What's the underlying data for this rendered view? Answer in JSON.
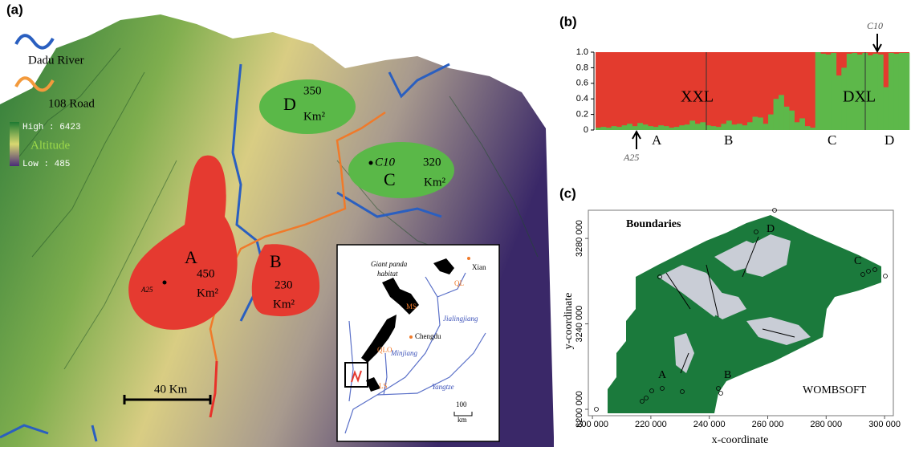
{
  "panel_a": {
    "label": "(a)",
    "legend": {
      "river": "Dadu River",
      "road": "108 Road",
      "high": "High : 6423",
      "altitude": "Altitude",
      "low": "Low : 485"
    },
    "regions": [
      {
        "name": "D",
        "area": "350",
        "unit": "Km²"
      },
      {
        "name": "C",
        "area": "320",
        "unit": "Km²",
        "sample": "C10"
      },
      {
        "name": "A",
        "area": "450",
        "unit": "Km²",
        "sample": "A25"
      },
      {
        "name": "B",
        "area": "230",
        "unit": "Km²"
      }
    ],
    "scale_bar": "40 Km",
    "inset": {
      "habitat": [
        "Giant panda",
        "habitat"
      ],
      "places": [
        "Xian",
        "QL",
        "MS",
        "Chengdu",
        "QLO",
        "LS"
      ],
      "rivers": [
        "Jialingjiang",
        "Minjiang",
        "Yangtze"
      ],
      "scale": [
        "100",
        "km"
      ]
    }
  },
  "chart_data": {
    "type": "bar",
    "label": "(b)",
    "series": [
      {
        "name": "DXL",
        "color": "#5db84a",
        "values": [
          0.03,
          0.04,
          0.03,
          0.05,
          0.04,
          0.06,
          0.08,
          0.05,
          0.09,
          0.07,
          0.05,
          0.04,
          0.06,
          0.05,
          0.03,
          0.04,
          0.06,
          0.07,
          0.12,
          0.08,
          0.1,
          0.06,
          0.05,
          0.04,
          0.08,
          0.12,
          0.07,
          0.08,
          0.06,
          0.1,
          0.17,
          0.16,
          0.08,
          0.2,
          0.4,
          0.45,
          0.3,
          0.25,
          0.1,
          0.15,
          0.05,
          0.03,
          1.0,
          0.98,
          0.97,
          0.99,
          0.7,
          0.8,
          0.98,
          0.99,
          0.97,
          0.99,
          0.96,
          0.98,
          0.97,
          0.55,
          0.99,
          0.98,
          0.99,
          0.99
        ]
      }
    ],
    "other": {
      "name": "XXL",
      "color": "#e33b2e"
    },
    "groups": [
      "A",
      "B",
      "C",
      "D"
    ],
    "annotations": [
      "C10",
      "A25"
    ],
    "ylim": [
      0,
      1
    ],
    "yticks": [
      0,
      0.2,
      0.4,
      0.6,
      0.8,
      {
        "value": 1,
        "label": "1.0"
      }
    ]
  },
  "panel_c": {
    "label": "(c)",
    "title": "Boundaries",
    "software": "WOMBSOFT",
    "xlabel": "x-coordinate",
    "ylabel": "y-coordinate",
    "xlim": [
      198600,
      303000
    ],
    "ylim": [
      3197000,
      3293200
    ],
    "xticks": [
      {
        "value": 200000,
        "label": "200 000"
      },
      {
        "value": 220000,
        "label": "220 000"
      },
      {
        "value": 240000,
        "label": "240 000"
      },
      {
        "value": 260000,
        "label": "260 000"
      },
      {
        "value": 280000,
        "label": "280 000"
      },
      {
        "value": 300000,
        "label": "300 000"
      }
    ],
    "yticks": [
      {
        "value": 3200000,
        "label": "3200 000"
      },
      {
        "value": 3240000,
        "label": "3240 000"
      },
      {
        "value": 3280000,
        "label": "3280 000"
      }
    ],
    "populations": [
      "A",
      "B",
      "C",
      "D"
    ],
    "colors": {
      "inside": "#1b7a3c",
      "boundary_zone": "#c9cdd6"
    }
  }
}
